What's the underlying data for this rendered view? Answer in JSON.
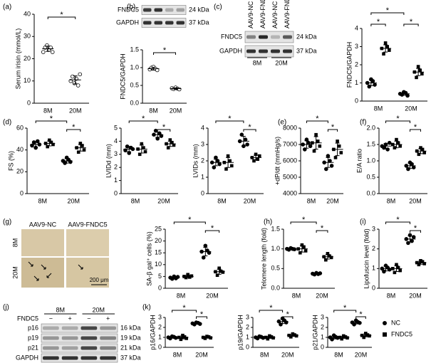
{
  "panel_labels": [
    "(a)",
    "(b)",
    "(c)",
    "(d)",
    "(e)",
    "(f)",
    "(g)",
    "(h)",
    "(i)",
    "(j)",
    "(k)"
  ],
  "blots": [
    {
      "rows": [
        {
          "protein": "FNDC5",
          "size": "24 kDa"
        },
        {
          "protein": "GAPDH",
          "size": "37 kDa"
        }
      ]
    },
    {
      "lanes": [
        "AAV9-NC",
        "AAV9-FNDC5",
        "AAV9-NC",
        "AAV9-FNDC5"
      ],
      "groups": [
        "8M",
        "20M"
      ],
      "rows": [
        {
          "protein": "FNDC5",
          "size": "24 kDa"
        },
        {
          "protein": "GAPDH",
          "size": "37 kDa"
        }
      ]
    },
    {
      "treatment": "FNDC5",
      "lanes": [
        "−",
        "+",
        "−",
        "+"
      ],
      "groups": [
        "8M",
        "20M"
      ],
      "rows": [
        {
          "protein": "p16",
          "size": "16 kDa"
        },
        {
          "protein": "p19",
          "size": "19 kDa"
        },
        {
          "protein": "p21",
          "size": "21 kDa"
        },
        {
          "protein": "GAPDH",
          "size": "37 kDa"
        }
      ]
    }
  ],
  "micrographs": {
    "columns": [
      "AAV9-NC",
      "AAV9-FNDC5"
    ],
    "rows": [
      "8M",
      "20M"
    ],
    "scale_bar": "200 μm"
  },
  "chart_data": [
    {
      "type": "dot",
      "ylabel": "Serum irisin (mmol/L)",
      "categories": [
        "8M",
        "20M"
      ],
      "ylim": [
        0,
        40
      ],
      "yticks": [
        0,
        10,
        20,
        30,
        40
      ],
      "annotations": [
        "*"
      ],
      "series": [
        {
          "marker": "open-circle",
          "color": "#000",
          "values": [
            [
              23,
              25,
              26,
              24,
              25,
              23
            ],
            [
              10,
              12,
              9,
              11,
              8,
              13
            ]
          ],
          "mean": [
            24.5,
            10.5
          ],
          "sd": [
            1.2,
            1.8
          ]
        }
      ]
    },
    {
      "type": "dot",
      "ylabel": "FNDC5/GAPDH",
      "categories": [
        "8M",
        "20M"
      ],
      "ylim": [
        0,
        1.5
      ],
      "yticks": [
        {
          "value": 0,
          "label": "0.0"
        },
        0.5,
        {
          "value": 1,
          "label": "1.0"
        },
        1.5
      ],
      "annotations": [
        "*"
      ],
      "series": [
        {
          "marker": "open-circle",
          "color": "#000",
          "values": [
            [
              0.95,
              1.0,
              1.02,
              0.97,
              0.93
            ],
            [
              0.42,
              0.4,
              0.44,
              0.41,
              0.39
            ]
          ],
          "mean": [
            0.97,
            0.41
          ],
          "sd": [
            0.04,
            0.02
          ]
        }
      ]
    },
    {
      "type": "dot",
      "ylabel": "FNDC5/GAPDH",
      "categories": [
        "8M",
        "20M"
      ],
      "ylim": [
        0,
        4
      ],
      "yticks": [
        0,
        1,
        2,
        3,
        4
      ],
      "annotations": [
        "*",
        "*",
        "*"
      ],
      "series": [
        {
          "name": "NC",
          "marker": "circle",
          "color": "#000",
          "values": [
            [
              1.0,
              0.8,
              1.2,
              1.1,
              0.9
            ],
            [
              0.4,
              0.35,
              0.5,
              0.45,
              0.3
            ]
          ],
          "mean": [
            1.0,
            0.4
          ],
          "sd": [
            0.15,
            0.08
          ]
        },
        {
          "name": "FNDC5",
          "marker": "square",
          "color": "#000",
          "values": [
            [
              2.9,
              2.6,
              3.2,
              3.0,
              2.8
            ],
            [
              1.6,
              1.3,
              1.9,
              1.7,
              1.5
            ]
          ],
          "mean": [
            2.9,
            1.6
          ],
          "sd": [
            0.2,
            0.2
          ]
        }
      ]
    },
    {
      "type": "dot",
      "ylabel": "FS (%)",
      "categories": [
        "8M",
        "20M"
      ],
      "ylim": [
        0,
        60
      ],
      "yticks": [
        0,
        20,
        40,
        60
      ],
      "annotations": [
        "*",
        "*"
      ],
      "series": [
        {
          "name": "NC",
          "marker": "circle",
          "color": "#000",
          "values": [
            [
              44,
              47,
              42,
              48,
              45
            ],
            [
              30,
              28,
              33,
              31,
              29
            ]
          ],
          "mean": [
            45,
            30
          ],
          "sd": [
            2.5,
            2
          ]
        },
        {
          "name": "FNDC5",
          "marker": "square",
          "color": "#000",
          "values": [
            [
              46,
              43,
              49,
              47,
              45
            ],
            [
              42,
              38,
              46,
              44,
              40
            ]
          ],
          "mean": [
            46,
            42
          ],
          "sd": [
            2.3,
            3
          ]
        }
      ]
    },
    {
      "type": "dot",
      "ylabel": "LVIDd (mm)",
      "categories": [
        "8M",
        "20M"
      ],
      "ylim": [
        0,
        5
      ],
      "yticks": [
        0,
        1,
        2,
        3,
        4,
        5
      ],
      "annotations": [
        "*",
        "*"
      ],
      "series": [
        {
          "name": "NC",
          "marker": "circle",
          "color": "#000",
          "values": [
            [
              3.3,
              3.6,
              3.1,
              3.5,
              3.4
            ],
            [
              4.5,
              4.8,
              4.2,
              4.6,
              4.4
            ]
          ],
          "mean": [
            3.4,
            4.5
          ],
          "sd": [
            0.2,
            0.2
          ]
        },
        {
          "name": "FNDC5",
          "marker": "square",
          "color": "#000",
          "values": [
            [
              3.4,
              3.0,
              3.8,
              3.5,
              3.2
            ],
            [
              3.8,
              3.5,
              4.1,
              3.9,
              3.7
            ]
          ],
          "mean": [
            3.4,
            3.8
          ],
          "sd": [
            0.3,
            0.2
          ]
        }
      ]
    },
    {
      "type": "dot",
      "ylabel": "LVIDs (mm)",
      "categories": [
        "8M",
        "20M"
      ],
      "ylim": [
        0,
        4
      ],
      "yticks": [
        0,
        1,
        2,
        3,
        4
      ],
      "annotations": [
        "*",
        "*"
      ],
      "series": [
        {
          "name": "NC",
          "marker": "circle",
          "color": "#000",
          "values": [
            [
              1.9,
              1.6,
              2.2,
              2.0,
              1.8
            ],
            [
              3.2,
              3.6,
              2.9,
              3.3,
              3.0
            ]
          ],
          "mean": [
            1.9,
            3.2
          ],
          "sd": [
            0.2,
            0.3
          ]
        },
        {
          "name": "FNDC5",
          "marker": "square",
          "color": "#000",
          "values": [
            [
              1.9,
              1.5,
              2.3,
              2.0,
              1.7
            ],
            [
              2.2,
              2.0,
              2.4,
              2.1,
              2.3
            ]
          ],
          "mean": [
            1.9,
            2.2
          ],
          "sd": [
            0.3,
            0.15
          ]
        }
      ]
    },
    {
      "type": "dot",
      "ylabel": "+dP/dt (mmHg/s)",
      "categories": [
        "8M",
        "20M"
      ],
      "ylim": [
        4000,
        8000
      ],
      "yticks": [
        4000,
        5000,
        6000,
        7000,
        8000
      ],
      "annotations": [
        "*",
        "*"
      ],
      "series": [
        {
          "name": "NC",
          "marker": "circle",
          "color": "#000",
          "values": [
            [
              7000,
              6700,
              7300,
              7100,
              6900
            ],
            [
              5900,
              5500,
              6300,
              6000,
              5700
            ]
          ],
          "mean": [
            7000,
            5900
          ],
          "sd": [
            230,
            300
          ]
        },
        {
          "name": "FNDC5",
          "marker": "square",
          "color": "#000",
          "values": [
            [
              7100,
              6600,
              7600,
              7200,
              6900
            ],
            [
              6700,
              6200,
              7200,
              6900,
              6500
            ]
          ],
          "mean": [
            7100,
            6700
          ],
          "sd": [
            380,
            380
          ]
        }
      ]
    },
    {
      "type": "dot",
      "ylabel": "E/A ratio",
      "categories": [
        "8M",
        "20M"
      ],
      "ylim": [
        0,
        2
      ],
      "yticks": [
        {
          "value": 0,
          "label": "0.0"
        },
        0.5,
        {
          "value": 1,
          "label": "1.0"
        },
        1.5,
        {
          "value": 2,
          "label": "2.0"
        }
      ],
      "annotations": [
        "*",
        "*"
      ],
      "series": [
        {
          "name": "NC",
          "marker": "circle",
          "color": "#000",
          "values": [
            [
              1.45,
              1.4,
              1.5,
              1.35,
              1.55
            ],
            [
              0.85,
              0.75,
              0.95,
              0.9,
              0.8
            ]
          ],
          "mean": [
            1.45,
            0.85
          ],
          "sd": [
            0.08,
            0.08
          ]
        },
        {
          "name": "FNDC5",
          "marker": "square",
          "color": "#000",
          "values": [
            [
              1.5,
              1.4,
              1.65,
              1.55,
              1.45
            ],
            [
              1.3,
              1.2,
              1.4,
              1.35,
              1.25
            ]
          ],
          "mean": [
            1.5,
            1.3
          ],
          "sd": [
            0.1,
            0.08
          ]
        }
      ]
    },
    {
      "type": "dot",
      "ylabel": "SA-β gal⁺ cells (%)",
      "categories": [
        "8M",
        "20M"
      ],
      "ylim": [
        0,
        25
      ],
      "yticks": [
        0,
        5,
        10,
        15,
        20,
        25
      ],
      "annotations": [
        "*",
        "*"
      ],
      "series": [
        {
          "name": "NC",
          "marker": "circle",
          "color": "#000",
          "values": [
            [
              4.5,
              4,
              5,
              4.2,
              4.8
            ],
            [
              15.5,
              13,
              18,
              16,
              15
            ]
          ],
          "mean": [
            4.5,
            15.5
          ],
          "sd": [
            0.4,
            1.8
          ]
        },
        {
          "name": "FNDC5",
          "marker": "square",
          "color": "#000",
          "values": [
            [
              5,
              4.5,
              5.8,
              4.7,
              5.2
            ],
            [
              7,
              5.5,
              8.5,
              7.2,
              6.8
            ]
          ],
          "mean": [
            5,
            7
          ],
          "sd": [
            0.5,
            1.1
          ]
        }
      ]
    },
    {
      "type": "dot",
      "ylabel": "Telomere length (fold)",
      "categories": [
        "8M",
        "20M"
      ],
      "ylim": [
        0,
        1.5
      ],
      "yticks": [
        {
          "value": 0,
          "label": "0.0"
        },
        0.5,
        {
          "value": 1,
          "label": "1.0"
        },
        1.5
      ],
      "annotations": [
        "*",
        "*"
      ],
      "series": [
        {
          "name": "NC",
          "marker": "circle",
          "color": "#000",
          "values": [
            [
              1.0,
              0.98,
              1.02,
              1.0,
              0.99
            ],
            [
              0.37,
              0.35,
              0.39,
              0.36,
              0.38
            ]
          ],
          "mean": [
            1.0,
            0.37
          ],
          "sd": [
            0.02,
            0.02
          ]
        },
        {
          "name": "FNDC5",
          "marker": "square",
          "color": "#000",
          "values": [
            [
              1.0,
              0.9,
              1.1,
              1.05,
              0.95
            ],
            [
              0.8,
              0.72,
              0.88,
              0.82,
              0.78
            ]
          ],
          "mean": [
            1.0,
            0.8
          ],
          "sd": [
            0.08,
            0.06
          ]
        }
      ]
    },
    {
      "type": "dot",
      "ylabel": "Lipofuscin level (fold)",
      "categories": [
        "8M",
        "20M"
      ],
      "ylim": [
        0,
        3
      ],
      "yticks": [
        0,
        1,
        2,
        3
      ],
      "annotations": [
        "*",
        "*"
      ],
      "series": [
        {
          "name": "NC",
          "marker": "circle",
          "color": "#000",
          "values": [
            [
              1.0,
              0.85,
              1.15,
              1.05,
              0.95
            ],
            [
              2.5,
              2.3,
              2.7,
              2.4,
              2.6
            ]
          ],
          "mean": [
            1.0,
            2.5
          ],
          "sd": [
            0.12,
            0.15
          ]
        },
        {
          "name": "FNDC5",
          "marker": "square",
          "color": "#000",
          "values": [
            [
              1.0,
              0.8,
              1.2,
              1.05,
              0.9
            ],
            [
              1.3,
              1.2,
              1.4,
              1.35,
              1.25
            ]
          ],
          "mean": [
            1.0,
            1.3
          ],
          "sd": [
            0.15,
            0.08
          ]
        }
      ]
    },
    {
      "type": "dot",
      "ylabel": "p16/GAPDH",
      "categories": [
        "8M",
        "20M"
      ],
      "ylim": [
        0,
        3
      ],
      "yticks": [
        0,
        1,
        2,
        3
      ],
      "annotations": [
        "*",
        "*"
      ],
      "series": [
        {
          "name": "NC",
          "marker": "circle",
          "color": "#000",
          "values": [
            [
              1.0,
              0.9,
              1.1,
              1.05,
              0.95
            ],
            [
              2.4,
              2.3,
              2.5,
              2.45,
              2.35
            ]
          ],
          "mean": [
            1.0,
            2.4
          ],
          "sd": [
            0.08,
            0.08
          ]
        },
        {
          "name": "FNDC5",
          "marker": "square",
          "color": "#000",
          "values": [
            [
              1.0,
              0.8,
              1.2,
              1.05,
              0.9
            ],
            [
              1.0,
              0.9,
              1.1,
              1.05,
              0.95
            ]
          ],
          "mean": [
            1.0,
            1.0
          ],
          "sd": [
            0.15,
            0.08
          ]
        }
      ]
    },
    {
      "type": "dot",
      "ylabel": "p19/GAPDH",
      "categories": [
        "8M",
        "20M"
      ],
      "ylim": [
        0,
        3
      ],
      "yticks": [
        0,
        1,
        2,
        3
      ],
      "annotations": [
        "*",
        "*"
      ],
      "series": [
        {
          "name": "NC",
          "marker": "circle",
          "color": "#000",
          "values": [
            [
              1.0,
              0.9,
              1.1,
              1.05,
              0.95
            ],
            [
              2.6,
              2.3,
              2.9,
              2.7,
              2.5
            ]
          ],
          "mean": [
            1.0,
            2.6
          ],
          "sd": [
            0.08,
            0.22
          ]
        },
        {
          "name": "FNDC5",
          "marker": "square",
          "color": "#000",
          "values": [
            [
              1.0,
              0.85,
              1.15,
              1.05,
              0.95
            ],
            [
              1.2,
              1.05,
              1.35,
              1.25,
              1.15
            ]
          ],
          "mean": [
            1.0,
            1.2
          ],
          "sd": [
            0.1,
            0.1
          ]
        }
      ]
    },
    {
      "type": "dot",
      "ylabel": "p21/GAPDH",
      "categories": [
        "8M",
        "20M"
      ],
      "ylim": [
        0,
        3
      ],
      "yticks": [
        0,
        1,
        2,
        3
      ],
      "annotations": [
        "*",
        "*"
      ],
      "legend": "right",
      "series": [
        {
          "name": "NC",
          "marker": "circle",
          "color": "#000",
          "values": [
            [
              1.0,
              0.8,
              1.2,
              1.05,
              0.95
            ],
            [
              2.5,
              2.3,
              2.7,
              2.55,
              2.45
            ]
          ],
          "mean": [
            1.0,
            2.5
          ],
          "sd": [
            0.15,
            0.15
          ]
        },
        {
          "name": "FNDC5",
          "marker": "square",
          "color": "#000",
          "values": [
            [
              1.0,
              0.85,
              1.15,
              1.05,
              0.95
            ],
            [
              1.2,
              1.0,
              1.4,
              1.25,
              1.15
            ]
          ],
          "mean": [
            1.0,
            1.2
          ],
          "sd": [
            0.1,
            0.15
          ]
        }
      ]
    }
  ]
}
